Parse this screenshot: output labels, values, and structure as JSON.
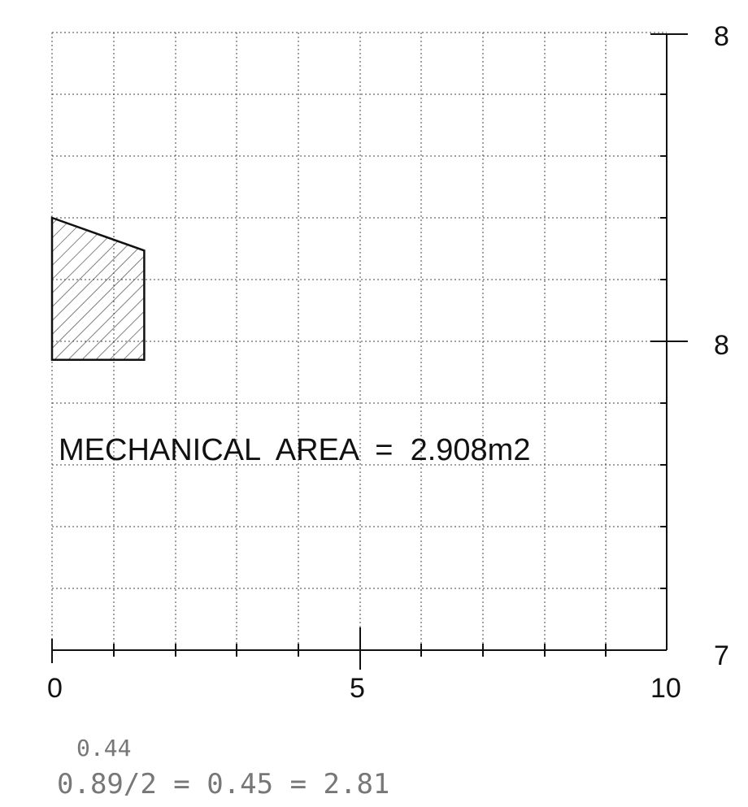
{
  "chart_data": {
    "type": "scatter",
    "xlim": [
      0,
      10
    ],
    "x_ticks": [
      "0",
      "5",
      "10"
    ],
    "right_edge_labels": [
      "8",
      "8",
      "7"
    ],
    "grid": true,
    "annotation": "MECHANICAL  AREA  =  2.908m2",
    "handwritten_notes": [
      "0.44",
      "0.89/2 = 0.45 = 2.81"
    ],
    "shape": {
      "name": "hatched-area",
      "vertices": [
        [
          0,
          7.0
        ],
        [
          1.5,
          6.47
        ],
        [
          1.5,
          4.7
        ],
        [
          0,
          4.7
        ]
      ]
    }
  }
}
